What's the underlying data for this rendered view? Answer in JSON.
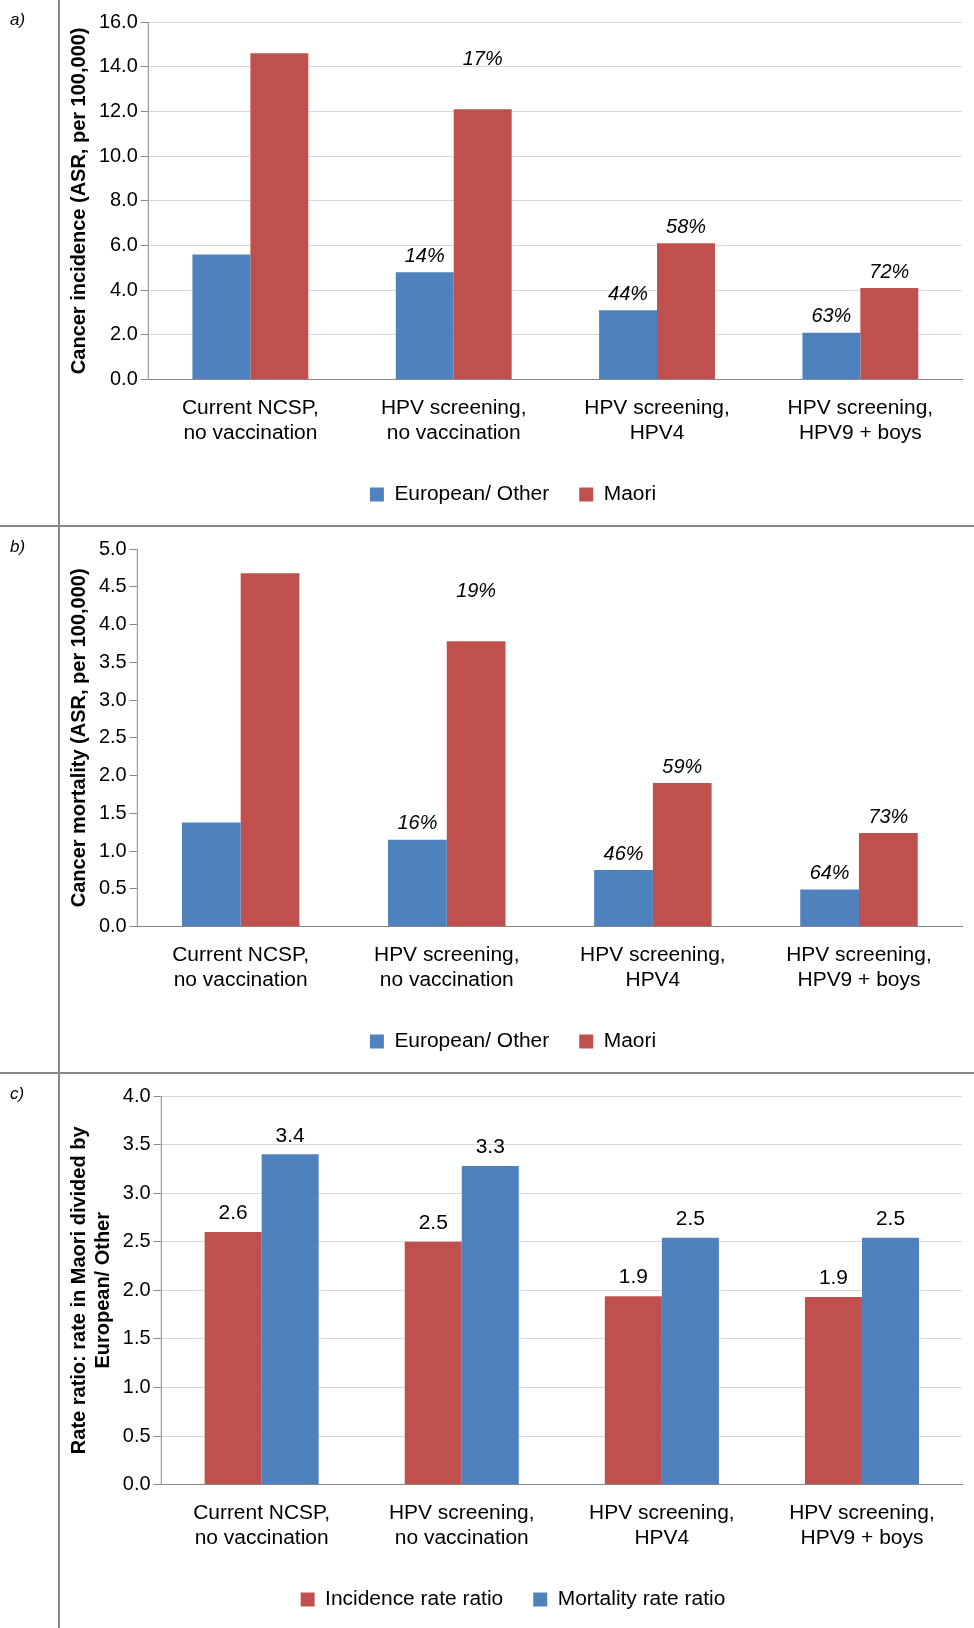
{
  "chart_data": [
    {
      "type": "bar",
      "ylabel": "Cancer incidence (ASR, per 100,000)",
      "categories": [
        "Current NCSP, no vaccination",
        "HPV screening, no vaccination",
        "HPV screening, HPV4",
        "HPV screening, HPV9 + boys"
      ],
      "series": [
        {
          "name": "European/ Other",
          "color": "#4f81bd",
          "values": [
            5.6,
            4.8,
            3.1,
            2.1
          ]
        },
        {
          "name": "Maori",
          "color": "#c0504d",
          "values": [
            14.6,
            12.1,
            6.1,
            4.1
          ]
        }
      ],
      "ylim": [
        0,
        16
      ],
      "yticks": [
        {
          "value": 0,
          "label": "0.0"
        },
        {
          "value": 2,
          "label": "2.0"
        },
        {
          "value": 4,
          "label": "4.0"
        },
        {
          "value": 6,
          "label": "6.0"
        },
        {
          "value": 8,
          "label": "8.0"
        },
        {
          "value": 10,
          "label": "10.0"
        },
        {
          "value": 12,
          "label": "12.0"
        },
        {
          "value": 14,
          "label": "14.0"
        },
        {
          "value": 16,
          "label": "16.0"
        }
      ],
      "grid": "y",
      "legend": "bottom",
      "annotations": [
        "a)",
        {
          "text": "14%",
          "x": "HPV screening, no vaccination",
          "y": 4.8
        },
        {
          "text": "17%",
          "x": "HPV screening, no vaccination",
          "y": 12.1
        },
        {
          "text": "44%",
          "x": "HPV screening, HPV4",
          "y": 3.1
        },
        {
          "text": "58%",
          "x": "HPV screening, HPV4",
          "y": 6.1
        },
        {
          "text": "63%",
          "x": "HPV screening, HPV9 + boys",
          "y": 2.1
        },
        {
          "text": "72%",
          "x": "HPV screening, HPV9 + boys",
          "y": 4.1
        }
      ]
    },
    {
      "type": "bar",
      "ylabel": "Cancer mortality (ASR, per 100,000)",
      "categories": [
        "Current NCSP, no vaccination",
        "HPV screening, no vaccination",
        "HPV screening, HPV4",
        "HPV screening, HPV9 + boys"
      ],
      "series": [
        {
          "name": "European/ Other",
          "color": "#4f81bd",
          "values": [
            1.38,
            1.15,
            0.75,
            0.49
          ]
        },
        {
          "name": "Maori",
          "color": "#c0504d",
          "values": [
            4.68,
            3.78,
            1.9,
            1.24
          ]
        }
      ],
      "ylim": [
        0,
        5
      ],
      "yticks": [
        {
          "value": 0,
          "label": "0.0"
        },
        {
          "value": 0.5,
          "label": "0.5"
        },
        {
          "value": 1,
          "label": "1.0"
        },
        {
          "value": 1.5,
          "label": "1.5"
        },
        {
          "value": 2,
          "label": "2.0"
        },
        {
          "value": 2.5,
          "label": "2.5"
        },
        {
          "value": 3,
          "label": "3.0"
        },
        {
          "value": 3.5,
          "label": "3.5"
        },
        {
          "value": 4,
          "label": "4.0"
        },
        {
          "value": 4.5,
          "label": "4.5"
        },
        {
          "value": 5,
          "label": "5.0"
        }
      ],
      "grid": false,
      "legend": "bottom",
      "annotations": [
        "b)",
        {
          "text": "16%",
          "x": "HPV screening, no vaccination",
          "y": 1.15
        },
        {
          "text": "19%",
          "x": "HPV screening, no vaccination",
          "y": 3.78
        },
        {
          "text": "46%",
          "x": "HPV screening, HPV4",
          "y": 0.75
        },
        {
          "text": "59%",
          "x": "HPV screening, HPV4",
          "y": 1.9
        },
        {
          "text": "64%",
          "x": "HPV screening, HPV9 + boys",
          "y": 0.49
        },
        {
          "text": "73%",
          "x": "HPV screening, HPV9 + boys",
          "y": 1.24
        }
      ]
    },
    {
      "type": "bar",
      "ylabel": "Rate ratio: rate in Maori divided by European/ Other",
      "categories": [
        "Current NCSP, no vaccination",
        "HPV screening, no vaccination",
        "HPV screening, HPV4",
        "HPV screening, HPV9 + boys"
      ],
      "series": [
        {
          "name": "Incidence rate ratio",
          "color": "#c0504d",
          "values": [
            2.6,
            2.5,
            1.94,
            1.93
          ],
          "value_labels": [
            "2.6",
            "2.5",
            "1.9",
            "1.9"
          ]
        },
        {
          "name": "Mortality rate ratio",
          "color": "#4f81bd",
          "values": [
            3.4,
            3.28,
            2.54,
            2.54
          ],
          "value_labels": [
            "3.4",
            "3.3",
            "2.5",
            "2.5"
          ]
        }
      ],
      "ylim": [
        0,
        4
      ],
      "yticks": [
        {
          "value": 0,
          "label": "0.0"
        },
        {
          "value": 0.5,
          "label": "0.5"
        },
        {
          "value": 1,
          "label": "1.0"
        },
        {
          "value": 1.5,
          "label": "1.5"
        },
        {
          "value": 2,
          "label": "2.0"
        },
        {
          "value": 2.5,
          "label": "2.5"
        },
        {
          "value": 3,
          "label": "3.0"
        },
        {
          "value": 3.5,
          "label": "3.5"
        },
        {
          "value": 4,
          "label": "4.0"
        }
      ],
      "grid": "y",
      "legend": "bottom",
      "annotations": [
        "c)"
      ]
    }
  ]
}
